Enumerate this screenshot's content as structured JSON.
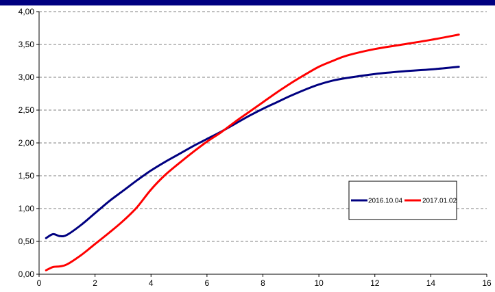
{
  "chart_data": {
    "type": "line",
    "title": "",
    "xlabel": "",
    "ylabel": "",
    "xlim": [
      0,
      16
    ],
    "ylim": [
      0,
      4
    ],
    "x_ticks": [
      0,
      2,
      4,
      6,
      8,
      10,
      12,
      14,
      16
    ],
    "x_tick_labels": [
      "0",
      "2",
      "4",
      "6",
      "8",
      "10",
      "12",
      "14",
      "16"
    ],
    "y_ticks": [
      0,
      0.5,
      1,
      1.5,
      2,
      2.5,
      3,
      3.5,
      4
    ],
    "y_tick_labels": [
      "0,00",
      "0,50",
      "1,00",
      "1,50",
      "2,00",
      "2,50",
      "3,00",
      "3,50",
      "4,00"
    ],
    "grid": "horizontal dashed",
    "legend_position": "right",
    "series": [
      {
        "name": "2016.10.04",
        "color": "#000080",
        "x": [
          0.25,
          0.5,
          0.75,
          1,
          1.5,
          2,
          2.5,
          3,
          3.5,
          4,
          4.5,
          5,
          5.5,
          6,
          6.5,
          7,
          7.5,
          8,
          8.5,
          9,
          9.5,
          10,
          10.5,
          11,
          12,
          13,
          14,
          15
        ],
        "y": [
          0.55,
          0.61,
          0.58,
          0.6,
          0.75,
          0.93,
          1.11,
          1.27,
          1.43,
          1.58,
          1.71,
          1.83,
          1.95,
          2.06,
          2.17,
          2.29,
          2.41,
          2.52,
          2.62,
          2.72,
          2.81,
          2.89,
          2.95,
          2.99,
          3.05,
          3.09,
          3.12,
          3.16
        ]
      },
      {
        "name": "2017.01.02",
        "color": "#ff0000",
        "x": [
          0.25,
          0.5,
          0.75,
          1,
          1.5,
          2,
          2.5,
          3,
          3.5,
          4,
          4.5,
          5,
          5.5,
          6,
          6.5,
          7,
          7.5,
          8,
          8.5,
          9,
          9.5,
          10,
          10.5,
          11,
          12,
          13,
          14,
          15
        ],
        "y": [
          0.06,
          0.11,
          0.12,
          0.15,
          0.29,
          0.46,
          0.63,
          0.81,
          1.02,
          1.29,
          1.51,
          1.69,
          1.86,
          2.02,
          2.16,
          2.32,
          2.47,
          2.62,
          2.77,
          2.91,
          3.04,
          3.16,
          3.25,
          3.33,
          3.43,
          3.5,
          3.57,
          3.65
        ]
      }
    ]
  }
}
